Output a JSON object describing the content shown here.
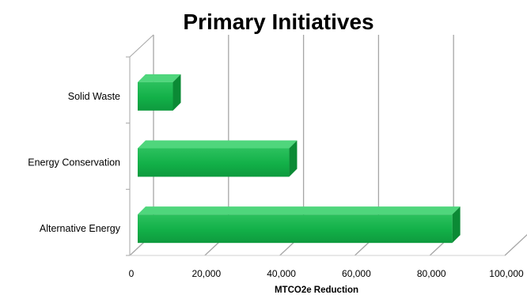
{
  "chart_data": {
    "type": "bar",
    "orientation": "horizontal",
    "style": "3d",
    "title": "Primary Initiatives",
    "xlabel": "MTCO2e Reduction",
    "ylabel": "",
    "categories": [
      "Solid Waste",
      "Energy Conservation",
      "Alternative Energy"
    ],
    "values": [
      11500,
      42500,
      86000
    ],
    "xlim": [
      0,
      100000
    ],
    "x_ticks": [
      "0",
      "20,000",
      "40,000",
      "60,000",
      "80,000",
      "100,000"
    ],
    "grid": true,
    "legend": "none",
    "colors": {
      "bar_front": "#12b048",
      "bar_top": "#4fd67c",
      "bar_side": "#0b8a35",
      "grid": "#a6a6a6",
      "text": "#000000"
    }
  }
}
